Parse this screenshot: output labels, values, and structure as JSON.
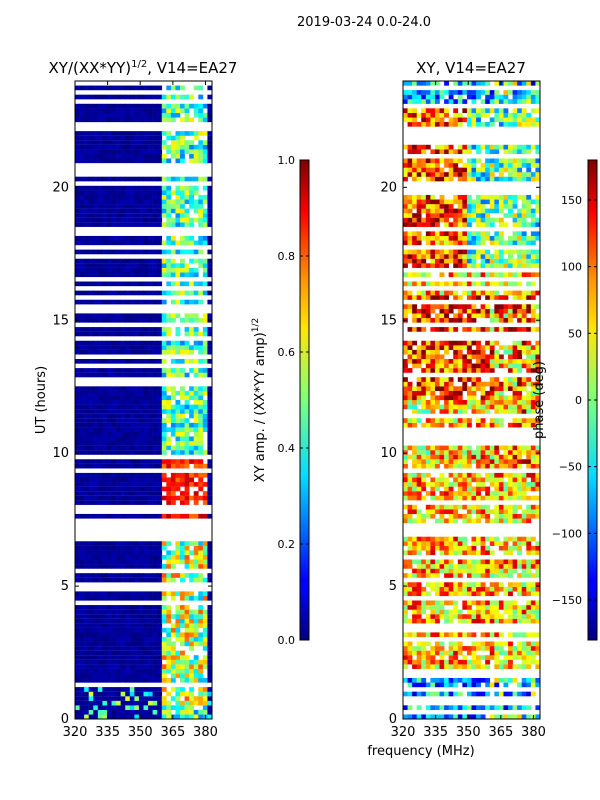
{
  "figure": {
    "suptitle": "2019-03-24 0.0-24.0",
    "shared_xlabel": "frequency (MHz)"
  },
  "chart_data": [
    {
      "type": "heatmap",
      "title": "XY/(XX*YY)",
      "title_exponent": "1/2",
      "title_suffix": ", V14=EA27",
      "xlabel": "frequency (MHz)",
      "ylabel": "UT (hours)",
      "xlim": [
        320,
        383
      ],
      "ylim": [
        0,
        24
      ],
      "xticks": [
        320,
        335,
        350,
        365,
        380
      ],
      "yticks": [
        0,
        5,
        10,
        15,
        20
      ],
      "colorbar": {
        "label": "XY amp. / (XX*YY amp)",
        "label_exponent": "1/2",
        "range": [
          0.0,
          1.0
        ],
        "ticks": [
          "0.0",
          "0.2",
          "0.4",
          "0.6",
          "0.8",
          "1.0"
        ]
      }
    },
    {
      "type": "heatmap",
      "title": "XY, V14=EA27",
      "xlabel": "frequency (MHz)",
      "ylabel": "",
      "xlim": [
        320,
        383
      ],
      "ylim": [
        0,
        24
      ],
      "xticks": [
        320,
        335,
        350,
        365,
        380
      ],
      "yticks": [
        0,
        5,
        10,
        15,
        20
      ],
      "colorbar": {
        "label": "phase (deg)",
        "range": [
          -180,
          180
        ],
        "ticks": [
          "150",
          "100",
          "50",
          "0",
          "−50",
          "−100",
          "−150"
        ]
      }
    }
  ],
  "colors": {
    "low": "#00007f",
    "mid": "#7fff7f",
    "high": "#7f0000"
  }
}
